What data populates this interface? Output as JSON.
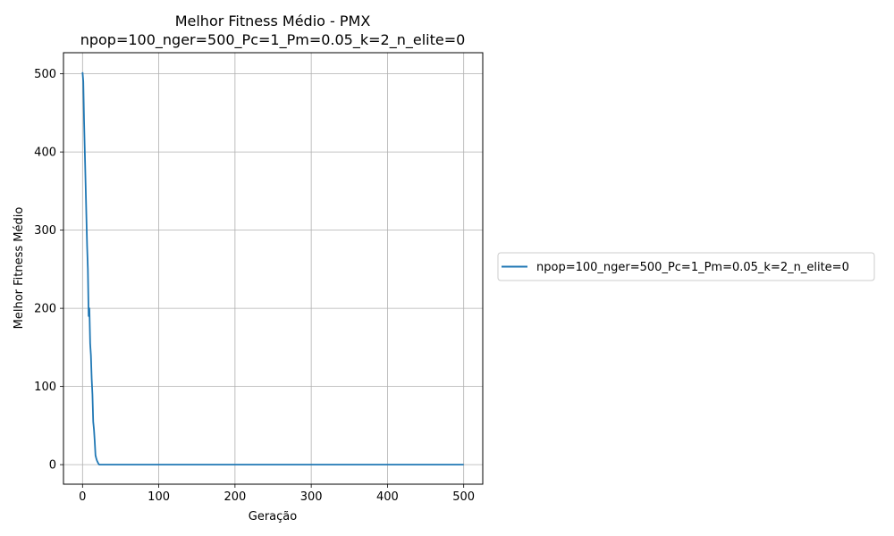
{
  "chart_data": {
    "type": "line",
    "title": "Melhor Fitness Médio - PMX",
    "subtitle": "npop=100_nger=500_Pc=1_Pm=0.05_k=2_n_elite=0",
    "xlabel": "Geração",
    "ylabel": "Melhor Fitness Médio",
    "xlim": [
      -25,
      525
    ],
    "ylim": [
      -25,
      527
    ],
    "xticks": [
      0,
      100,
      200,
      300,
      400,
      500
    ],
    "yticks": [
      0,
      100,
      200,
      300,
      400,
      500
    ],
    "grid": true,
    "legend_position": "outside-right",
    "series": [
      {
        "name": "npop=100_nger=500_Pc=1_Pm=0.05_k=2_n_elite=0",
        "color": "#1f77b4",
        "x": [
          0,
          1,
          2,
          3,
          4,
          5,
          6,
          7,
          8,
          9,
          10,
          11,
          12,
          13,
          14,
          15,
          16,
          17,
          18,
          19,
          20,
          21,
          22,
          25,
          30,
          50,
          100,
          200,
          300,
          400,
          500
        ],
        "y": [
          502,
          490,
          440,
          400,
          360,
          320,
          280,
          250,
          190,
          200,
          155,
          140,
          110,
          90,
          55,
          45,
          30,
          12,
          8,
          5,
          3,
          1,
          0,
          0,
          0,
          0,
          0,
          0,
          0,
          0,
          0
        ]
      }
    ]
  }
}
